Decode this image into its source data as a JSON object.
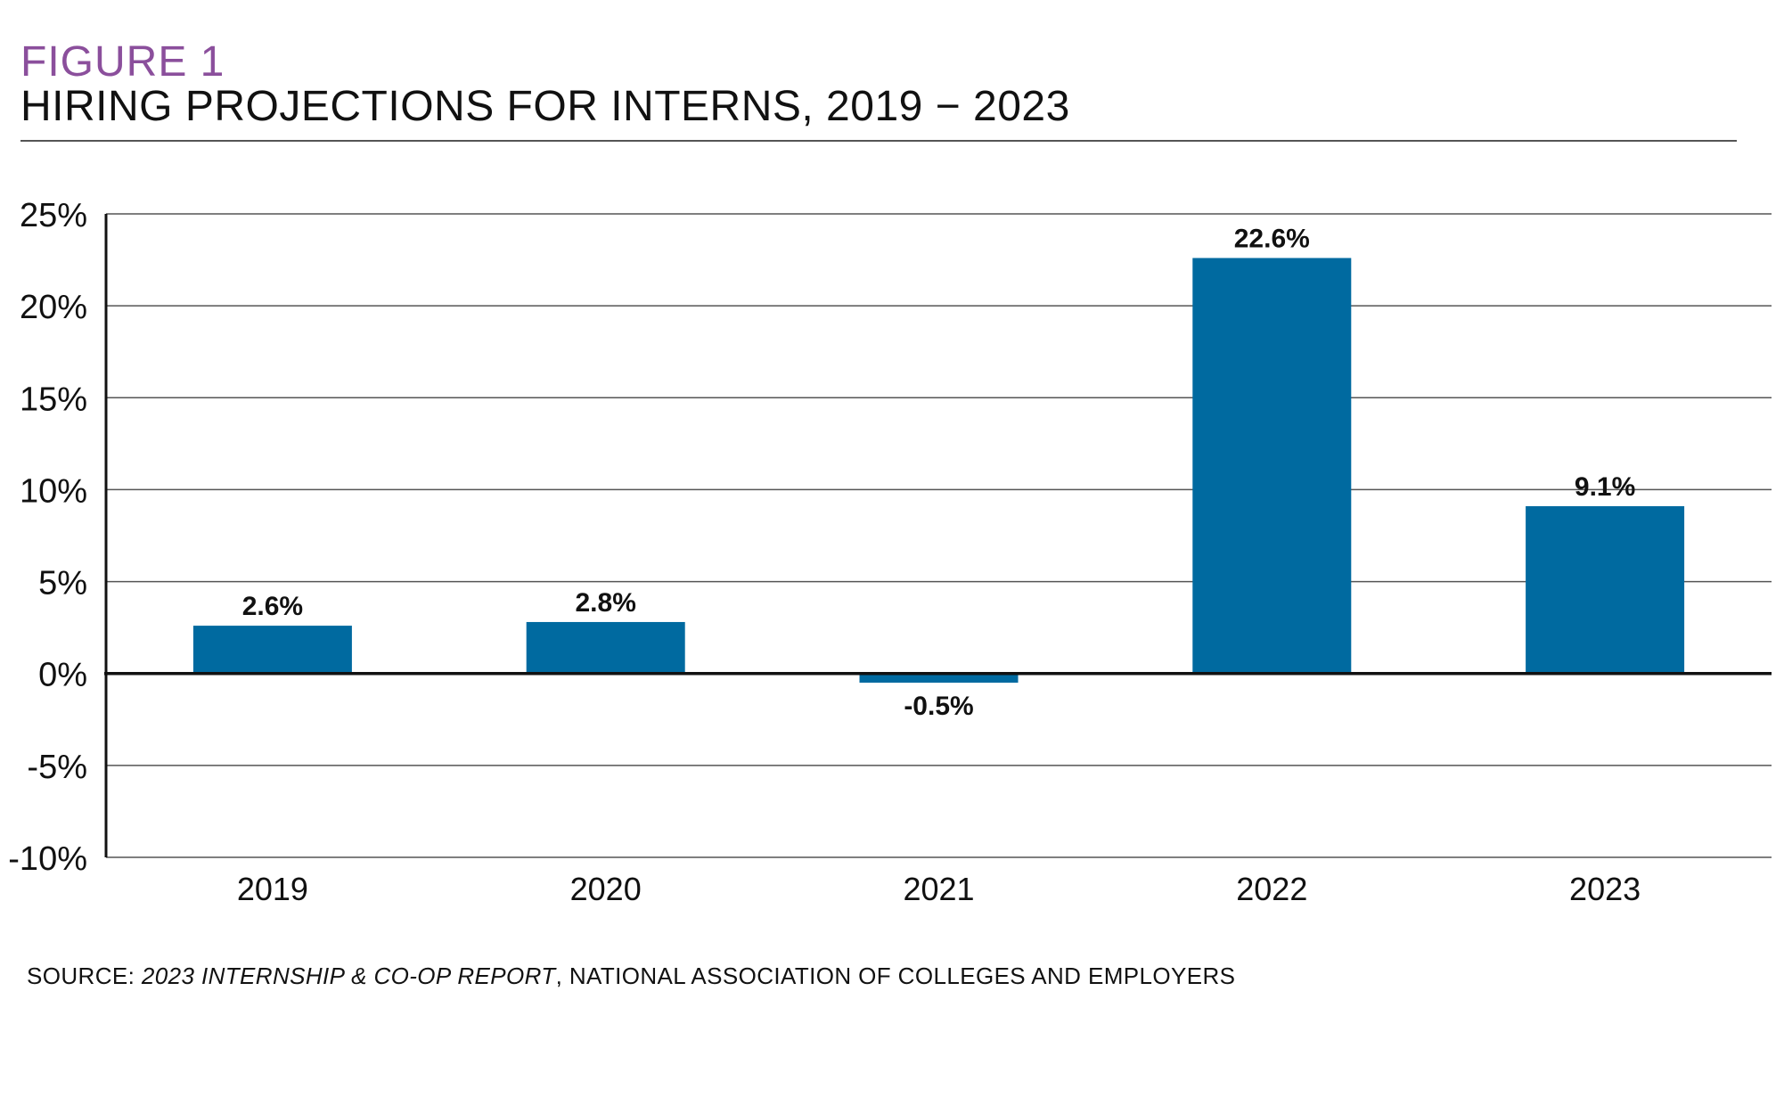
{
  "header": {
    "figure_label": "FIGURE 1",
    "title": "HIRING PROJECTIONS FOR INTERNS, 2019 − 2023"
  },
  "source": {
    "prefix": "SOURCE: ",
    "report": "2023 INTERNSHIP & CO-OP REPORT",
    "publisher": ", NATIONAL ASSOCIATION OF COLLEGES AND EMPLOYERS"
  },
  "colors": {
    "bar": "#006aa0",
    "figure_label": "#8b4f9c",
    "grid": "#555555",
    "axis": "#111111"
  },
  "chart_data": {
    "type": "bar",
    "title": "HIRING PROJECTIONS FOR INTERNS, 2019 − 2023",
    "xlabel": "",
    "ylabel": "",
    "categories": [
      "2019",
      "2020",
      "2021",
      "2022",
      "2023"
    ],
    "values": [
      2.6,
      2.8,
      -0.5,
      22.6,
      9.1
    ],
    "value_labels": [
      "2.6%",
      "2.8%",
      "-0.5%",
      "22.6%",
      "9.1%"
    ],
    "ylim": [
      -10,
      25
    ],
    "yticks": [
      25,
      20,
      15,
      10,
      5,
      0,
      -5,
      -10
    ],
    "ytick_labels": [
      "25%",
      "20%",
      "15%",
      "10%",
      "5%",
      "0%",
      "-5%",
      "-10%"
    ],
    "grid": true,
    "legend": "none"
  }
}
